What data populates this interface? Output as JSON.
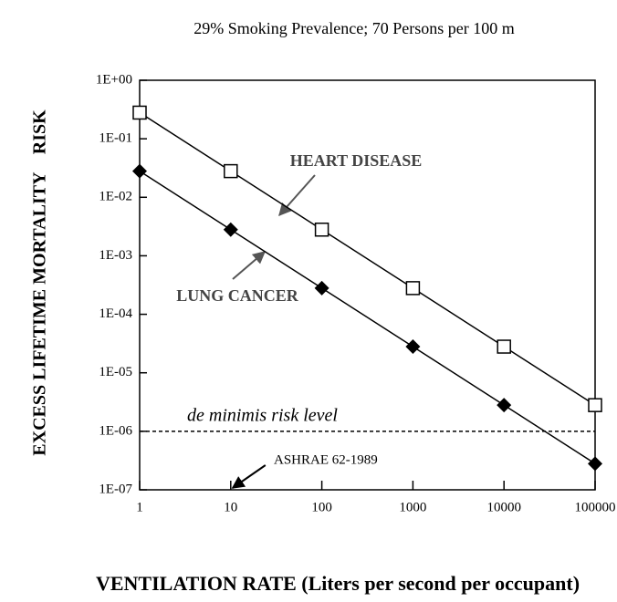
{
  "chart_data": {
    "type": "line",
    "title": "29% Smoking Prevalence; 70 Persons per 100 m",
    "y_label": "EXCESS LIFETIME MORTALITY    RISK",
    "x_label": "VENTILATION RATE (Liters per second per occupant)",
    "log_x": true,
    "log_y": true,
    "x": [
      1,
      10,
      100,
      1000,
      10000,
      100000
    ],
    "series": [
      {
        "name": "HEART DISEASE",
        "color": "#000000",
        "marker": "square",
        "values": [
          0.28,
          0.028,
          0.0028,
          0.00028,
          2.8e-05,
          2.8e-06
        ]
      },
      {
        "name": "LUNG CANCER",
        "color": "#000000",
        "marker": "diamond",
        "values": [
          0.028,
          0.0028,
          0.00028,
          2.8e-05,
          2.8e-06,
          2.8e-07
        ]
      }
    ],
    "reference_line": {
      "value": 1e-06,
      "label": "de minimis risk level"
    },
    "annotation": {
      "x": 10,
      "label": "ASHRAE 62-1989"
    },
    "xlim": [
      1,
      100000
    ],
    "ylim": [
      1e-07,
      1
    ],
    "xticks": [
      1,
      10,
      100,
      1000,
      10000,
      100000
    ],
    "yticks": [
      {
        "value": 1,
        "label": "1E+00"
      },
      {
        "value": 0.1,
        "label": "1E-01"
      },
      {
        "value": 0.01,
        "label": "1E-02"
      },
      {
        "value": 0.001,
        "label": "1E-03"
      },
      {
        "value": 0.0001,
        "label": "1E-04"
      },
      {
        "value": 1e-05,
        "label": "1E-05"
      },
      {
        "value": 1e-06,
        "label": "1E-06"
      },
      {
        "value": 1e-07,
        "label": "1E-07"
      }
    ]
  }
}
